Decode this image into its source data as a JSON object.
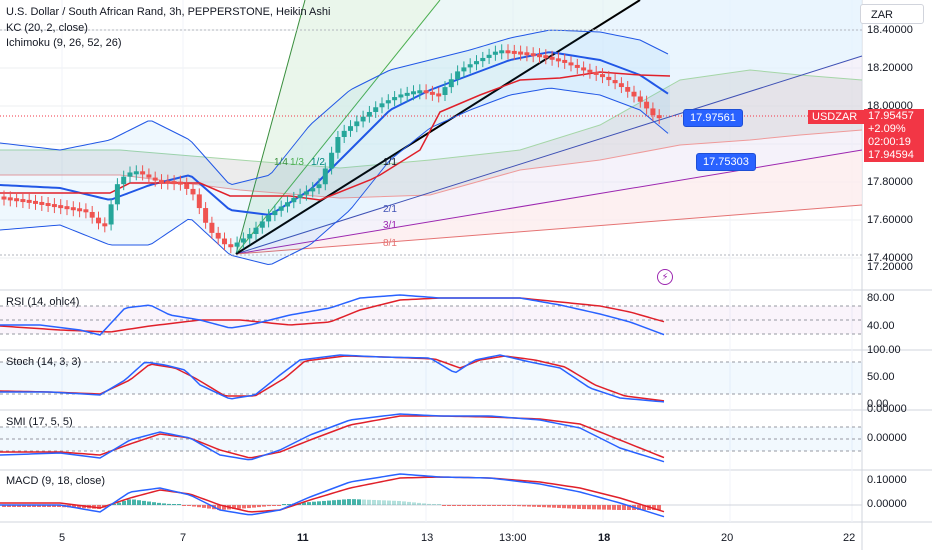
{
  "header": {
    "title": "U.S. Dollar / South African Rand, 3h, PEPPERSTONE, Heikin Ashi",
    "kc_label": "KC (20, 2, close)",
    "ichimoku_label": "Ichimoku (9, 26, 52, 26)"
  },
  "currency_selector": "ZAR",
  "colors": {
    "up": "#26a69a",
    "down": "#ef5350",
    "blue": "#2962ff",
    "red": "#f23645",
    "kc_blue": "#2157e6",
    "kc_red": "#e0202a",
    "purple": "#9c27b0",
    "black": "#000000"
  },
  "price_tags": {
    "symbol": "USDZAR",
    "price": "17.95457",
    "change": "+2.09%",
    "countdown": "02:00:19",
    "low": "17.94594",
    "marker_a": "17.97561",
    "marker_b": "17.75303"
  },
  "fan_labels": [
    "1/4",
    "1/3",
    "1/2",
    "1/1",
    "2/1",
    "3/1",
    "8/1"
  ],
  "chart_data": [
    {
      "type": "candlestick",
      "name": "USDZAR Heikin Ashi 3h",
      "x": [
        "5",
        "7",
        "11",
        "13",
        "13:00",
        "18",
        "20",
        "22"
      ],
      "y_ticks": [
        "18.40000",
        "18.20000",
        "18.00000",
        "17.80000",
        "17.60000",
        "17.40000",
        "17.20000"
      ],
      "ylim": [
        17.16,
        18.44
      ]
    },
    {
      "type": "line",
      "name": "RSI (14, ohlc4)",
      "y_ticks": [
        "80.00",
        "40.00"
      ]
    },
    {
      "type": "line",
      "name": "Stoch (14, 3, 3)",
      "y_ticks": [
        "100.00",
        "50.00",
        "0.00"
      ]
    },
    {
      "type": "line",
      "name": "SMI (17, 5, 5)",
      "y_ticks": [
        "0.00000",
        "0.00000"
      ]
    },
    {
      "type": "bar",
      "name": "MACD (9, 18, close)",
      "y_ticks": [
        "0.10000",
        "0.00000"
      ]
    }
  ],
  "x_axis": [
    "5",
    "7",
    "11",
    "13",
    "13:00",
    "18",
    "20",
    "22"
  ]
}
